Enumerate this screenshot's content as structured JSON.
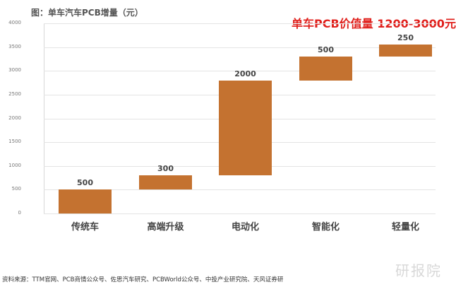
{
  "header": {
    "title": "图：单车汽车PCB增量（元）",
    "headline": "单车PCB价值量 1200-3000元"
  },
  "footer": {
    "source": "资料来源：TTM官网、PCB商情公众号、佐思汽车研究、PCBWorld公众号、中投产业研究院、天风证券研",
    "watermark": "研报院"
  },
  "colors": {
    "bar": "#c47230",
    "headline": "#e0201c"
  },
  "chart_data": {
    "type": "bar",
    "subtype": "waterfall",
    "title": "图：单车汽车PCB增量（元）",
    "annotation": "单车PCB价值量 1200-3000元",
    "categories": [
      "传统车",
      "高端升级",
      "电动化",
      "智能化",
      "轻量化"
    ],
    "values": [
      500,
      300,
      2000,
      500,
      250
    ],
    "bases": [
      0,
      500,
      800,
      2800,
      3300
    ],
    "tops": [
      500,
      800,
      2800,
      3300,
      3550
    ],
    "value_labels": [
      "500",
      "300",
      "2000",
      "500",
      "250"
    ],
    "xlabel": "",
    "ylabel": "",
    "ylim": [
      0,
      4000
    ],
    "yticks": [
      "0",
      "500",
      "1000",
      "1500",
      "2000",
      "2500",
      "3000",
      "3500",
      "4000"
    ],
    "grid": true,
    "legend": null
  }
}
